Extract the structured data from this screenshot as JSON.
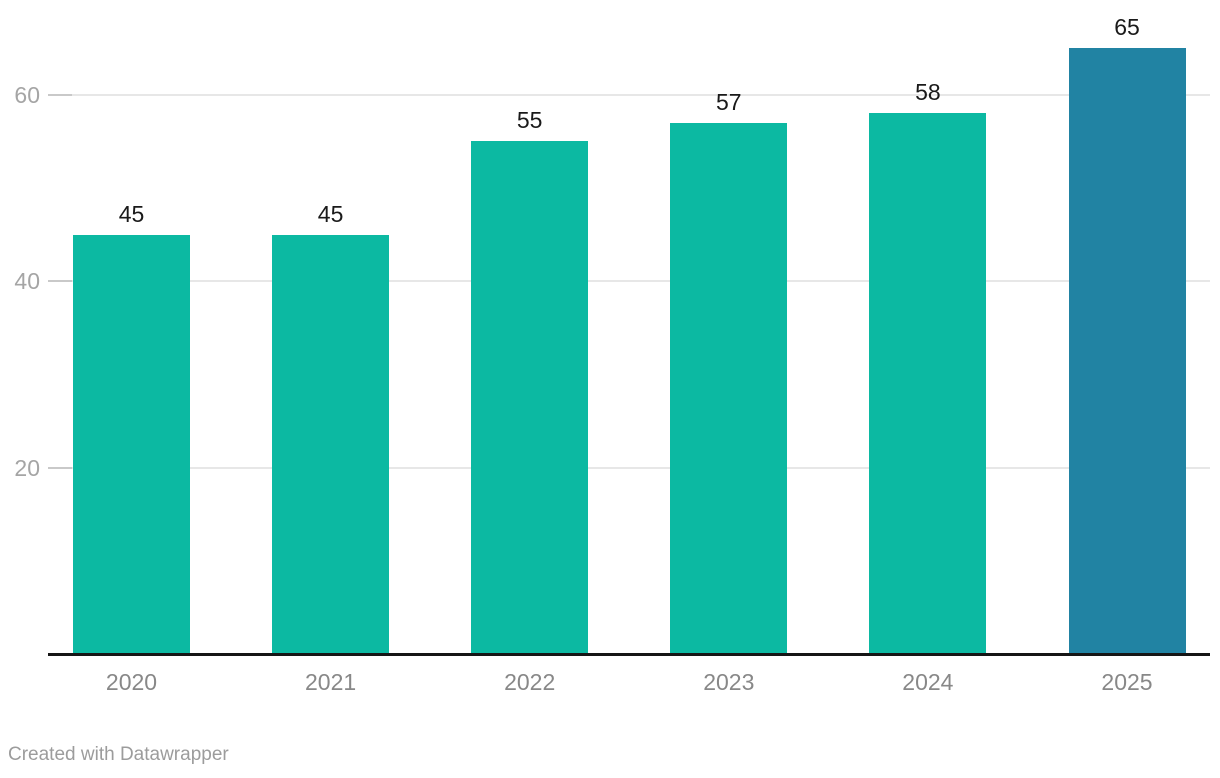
{
  "chart_data": {
    "type": "bar",
    "categories": [
      "2020",
      "2021",
      "2022",
      "2023",
      "2024",
      "2025"
    ],
    "values": [
      45,
      45,
      55,
      57,
      58,
      65
    ],
    "title": "",
    "xlabel": "",
    "ylabel": "",
    "ylim": [
      0,
      65
    ],
    "yticks": [
      20,
      40,
      60
    ],
    "grid": true,
    "legend": "none",
    "value_labels_shown": true,
    "bar_colors": [
      "#0cb9a2",
      "#0cb9a2",
      "#0cb9a2",
      "#0cb9a2",
      "#0cb9a2",
      "#2183a3"
    ],
    "highlight_index": 5
  },
  "colors": {
    "bar_default": "#0cb9a2",
    "bar_highlight": "#2183a3",
    "gridline": "#e7e7e7",
    "tick": "#c9c9c9",
    "axis_line": "#161616",
    "value_label": "#1a1a1a",
    "y_axis_label": "#a5a5a5",
    "x_axis_label": "#888888",
    "footer_text": "#9c9c9c",
    "background": "#ffffff"
  },
  "footer": {
    "attribution": "Created with Datawrapper"
  }
}
